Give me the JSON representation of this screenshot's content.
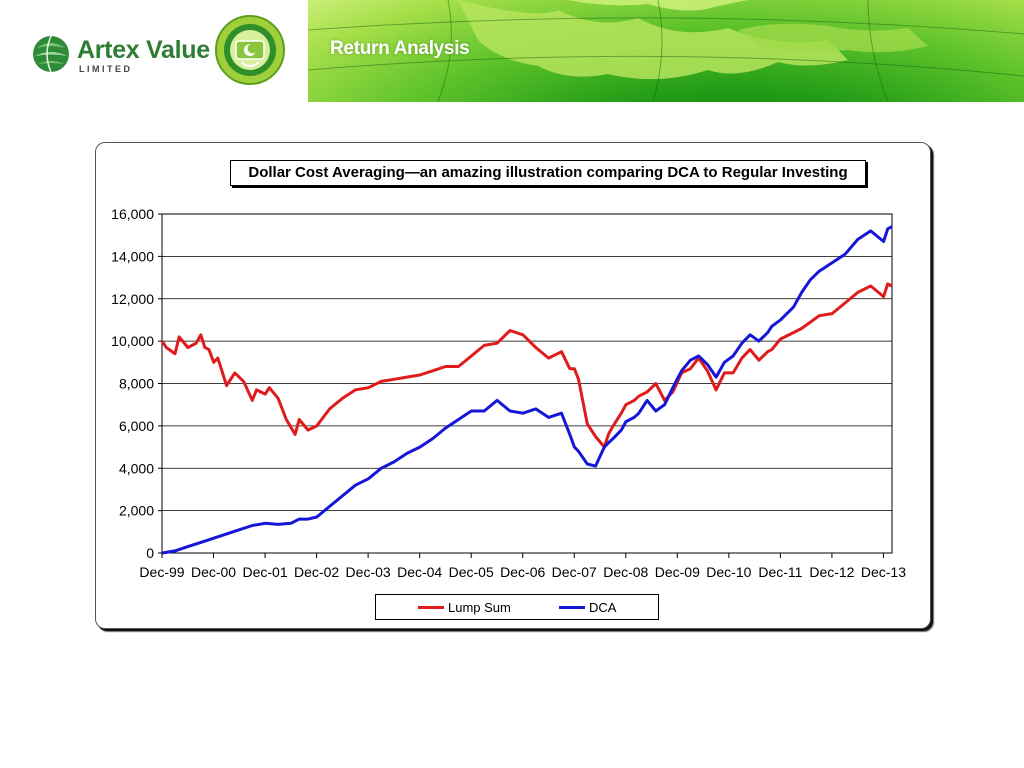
{
  "brand": {
    "name": "Artex Value",
    "sub": "LIMITED"
  },
  "banner": {
    "title": "Return Analysis"
  },
  "colors": {
    "lump_sum": "#e01b1b",
    "dca": "#1616d8",
    "banner_green": "#2f9d1e",
    "brand_green": "#2e7d32"
  },
  "chart_data": {
    "type": "line",
    "title": "Dollar Cost Averaging—an amazing illustration comparing DCA to Regular Investing",
    "xlabel": "",
    "ylabel": "",
    "ylim": [
      0,
      16000
    ],
    "yticks": [
      0,
      2000,
      4000,
      6000,
      8000,
      10000,
      12000,
      14000,
      16000
    ],
    "ytick_labels": [
      "0",
      "2,000",
      "4,000",
      "6,000",
      "8,000",
      "10,000",
      "12,000",
      "14,000",
      "16,000"
    ],
    "xlim": [
      1999.917,
      2014.083
    ],
    "xtick_labels": [
      "Dec-99",
      "Dec-00",
      "Dec-01",
      "Dec-02",
      "Dec-03",
      "Dec-04",
      "Dec-05",
      "Dec-06",
      "Dec-07",
      "Dec-08",
      "Dec-09",
      "Dec-10",
      "Dec-11",
      "Dec-12",
      "Dec-13"
    ],
    "grid": "horizontal",
    "legend_position": "bottom",
    "series": [
      {
        "name": "Lump Sum",
        "color": "#e01b1b",
        "x": [
          1999.92,
          2000.0,
          2000.17,
          2000.25,
          2000.42,
          2000.58,
          2000.67,
          2000.75,
          2000.83,
          2000.92,
          2001.0,
          2001.17,
          2001.33,
          2001.5,
          2001.67,
          2001.75,
          2001.92,
          2002.0,
          2002.17,
          2002.33,
          2002.5,
          2002.58,
          2002.75,
          2002.92,
          2003.17,
          2003.42,
          2003.67,
          2003.92,
          2004.17,
          2004.42,
          2004.67,
          2004.92,
          2005.17,
          2005.42,
          2005.67,
          2005.92,
          2006.17,
          2006.42,
          2006.67,
          2006.92,
          2007.17,
          2007.42,
          2007.67,
          2007.83,
          2007.92,
          2008.0,
          2008.17,
          2008.33,
          2008.5,
          2008.58,
          2008.67,
          2008.83,
          2008.92,
          2009.08,
          2009.17,
          2009.33,
          2009.5,
          2009.67,
          2009.83,
          2010.0,
          2010.17,
          2010.33,
          2010.5,
          2010.67,
          2010.83,
          2011.0,
          2011.17,
          2011.33,
          2011.5,
          2011.67,
          2011.75,
          2011.92,
          2012.17,
          2012.33,
          2012.5,
          2012.67,
          2012.92,
          2013.17,
          2013.42,
          2013.67,
          2013.92,
          2014.0,
          2014.08
        ],
        "values": [
          10000,
          9700,
          9400,
          10200,
          9700,
          9900,
          10300,
          9700,
          9600,
          9000,
          9200,
          7900,
          8500,
          8100,
          7200,
          7700,
          7500,
          7800,
          7300,
          6300,
          5600,
          6300,
          5800,
          6000,
          6800,
          7300,
          7700,
          7800,
          8100,
          8200,
          8300,
          8400,
          8600,
          8800,
          8800,
          9300,
          9800,
          9900,
          10500,
          10300,
          9700,
          9200,
          9500,
          8700,
          8700,
          8200,
          6100,
          5500,
          5000,
          5600,
          6000,
          6600,
          7000,
          7200,
          7400,
          7600,
          8000,
          7200,
          7600,
          8500,
          8700,
          9200,
          8600,
          7700,
          8500,
          8500,
          9200,
          9600,
          9100,
          9500,
          9600,
          10100,
          10400,
          10600,
          10900,
          11200,
          11300,
          11800,
          12300,
          12600,
          12100,
          12700,
          12600
        ]
      },
      {
        "name": "DCA",
        "color": "#1616d8",
        "x": [
          1999.92,
          2000.17,
          2000.42,
          2000.67,
          2000.92,
          2001.17,
          2001.42,
          2001.67,
          2001.92,
          2002.17,
          2002.42,
          2002.58,
          2002.75,
          2002.92,
          2003.17,
          2003.42,
          2003.67,
          2003.92,
          2004.17,
          2004.42,
          2004.67,
          2004.92,
          2005.17,
          2005.42,
          2005.67,
          2005.92,
          2006.17,
          2006.42,
          2006.67,
          2006.92,
          2007.17,
          2007.42,
          2007.67,
          2007.83,
          2007.92,
          2008.0,
          2008.17,
          2008.33,
          2008.5,
          2008.58,
          2008.67,
          2008.83,
          2008.92,
          2009.08,
          2009.17,
          2009.33,
          2009.5,
          2009.67,
          2009.83,
          2010.0,
          2010.17,
          2010.33,
          2010.5,
          2010.67,
          2010.83,
          2011.0,
          2011.17,
          2011.33,
          2011.5,
          2011.67,
          2011.75,
          2011.92,
          2012.17,
          2012.33,
          2012.5,
          2012.67,
          2012.92,
          2013.17,
          2013.42,
          2013.67,
          2013.92,
          2014.0,
          2014.08
        ],
        "values": [
          0,
          100,
          300,
          500,
          700,
          900,
          1100,
          1300,
          1400,
          1350,
          1400,
          1600,
          1600,
          1700,
          2200,
          2700,
          3200,
          3500,
          4000,
          4300,
          4700,
          5000,
          5400,
          5900,
          6300,
          6700,
          6700,
          7200,
          6700,
          6600,
          6800,
          6400,
          6600,
          5600,
          5000,
          4800,
          4200,
          4100,
          5000,
          5200,
          5400,
          5800,
          6200,
          6400,
          6600,
          7200,
          6700,
          7000,
          7800,
          8600,
          9100,
          9300,
          8900,
          8300,
          9000,
          9300,
          9900,
          10300,
          10000,
          10400,
          10700,
          11000,
          11600,
          12300,
          12900,
          13300,
          13700,
          14100,
          14800,
          15200,
          14700,
          15300,
          15400
        ]
      }
    ]
  }
}
